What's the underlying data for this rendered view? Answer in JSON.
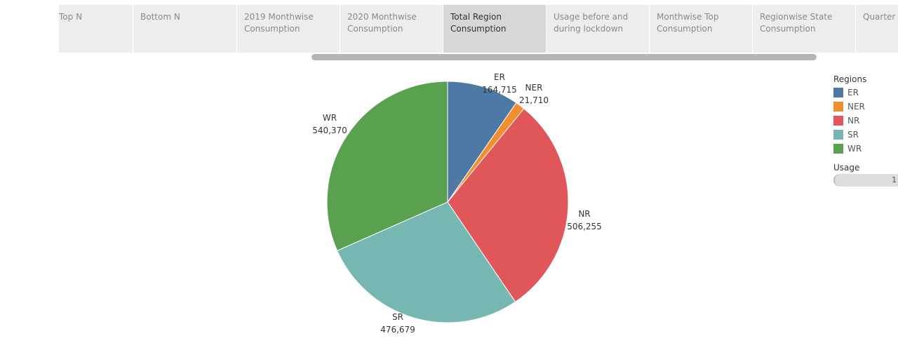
{
  "tabs": [
    {
      "label": "Top N",
      "active": false
    },
    {
      "label": "Bottom N",
      "active": false
    },
    {
      "label": "2019 Monthwise\nConsumption",
      "active": false
    },
    {
      "label": "2020 Monthwise\nConsumption",
      "active": false
    },
    {
      "label": "Total Region\nConsumption",
      "active": true
    },
    {
      "label": "Usage before and\nduring lockdown",
      "active": false
    },
    {
      "label": "Monthwise Top\nConsumption",
      "active": false
    },
    {
      "label": "Regionwise State\nConsumption",
      "active": false
    },
    {
      "label": "Quarter",
      "active": false
    }
  ],
  "legend": {
    "title": "Regions",
    "items": [
      {
        "label": "ER",
        "color": "#4e79a7"
      },
      {
        "label": "NER",
        "color": "#f28e2b"
      },
      {
        "label": "NR",
        "color": "#e15759"
      },
      {
        "label": "SR",
        "color": "#76b7b2"
      },
      {
        "label": "WR",
        "color": "#59a14f"
      }
    ]
  },
  "usage_filter": {
    "title": "Usage",
    "value": "1"
  },
  "chart_data": {
    "type": "pie",
    "slices": [
      {
        "label": "ER",
        "value": 164715,
        "value_label": "164,715",
        "color": "#4e79a7"
      },
      {
        "label": "NER",
        "value": 21710,
        "value_label": "21,710",
        "color": "#f28e2b"
      },
      {
        "label": "NR",
        "value": 506255,
        "value_label": "506,255",
        "color": "#e15759"
      },
      {
        "label": "SR",
        "value": 476679,
        "value_label": "476,679",
        "color": "#76b7b2"
      },
      {
        "label": "WR",
        "value": 540370,
        "value_label": "540,370",
        "color": "#59a14f"
      }
    ],
    "start": "12 o'clock",
    "direction": "clockwise"
  }
}
